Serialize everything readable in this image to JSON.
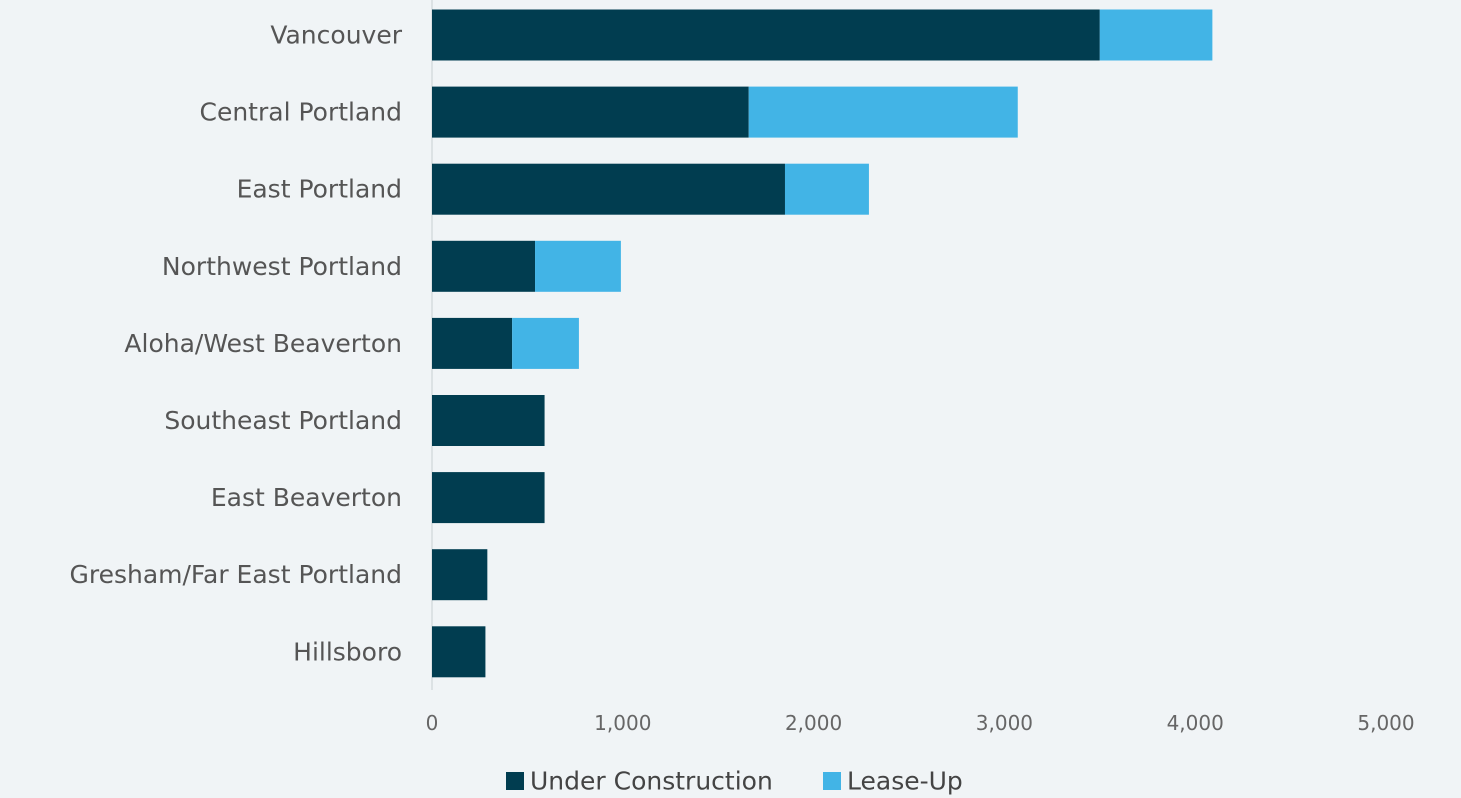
{
  "chart_data": {
    "type": "bar",
    "orientation": "horizontal",
    "stacked": true,
    "categories": [
      "Vancouver",
      "Central Portland",
      "East Portland",
      "Northwest Portland",
      "Aloha/West Beaverton",
      "Southeast Portland",
      "East Beaverton",
      "Gresham/Far East Portland",
      "Hillsboro"
    ],
    "series": [
      {
        "name": "Under Construction",
        "color": "#013d50",
        "values": [
          3500,
          1660,
          1850,
          540,
          420,
          590,
          590,
          290,
          280
        ]
      },
      {
        "name": "Lease-Up",
        "color": "#42b4e6",
        "values": [
          590,
          1410,
          440,
          450,
          350,
          0,
          0,
          0,
          0
        ]
      }
    ],
    "xlim": [
      0,
      5000
    ],
    "xticks": [
      0,
      1000,
      2000,
      3000,
      4000,
      5000
    ],
    "xtick_labels": [
      "0",
      "1,000",
      "2,000",
      "3,000",
      "4,000",
      "5,000"
    ],
    "title": "",
    "xlabel": "",
    "ylabel": "",
    "grid": false,
    "legend_position": "bottom"
  }
}
